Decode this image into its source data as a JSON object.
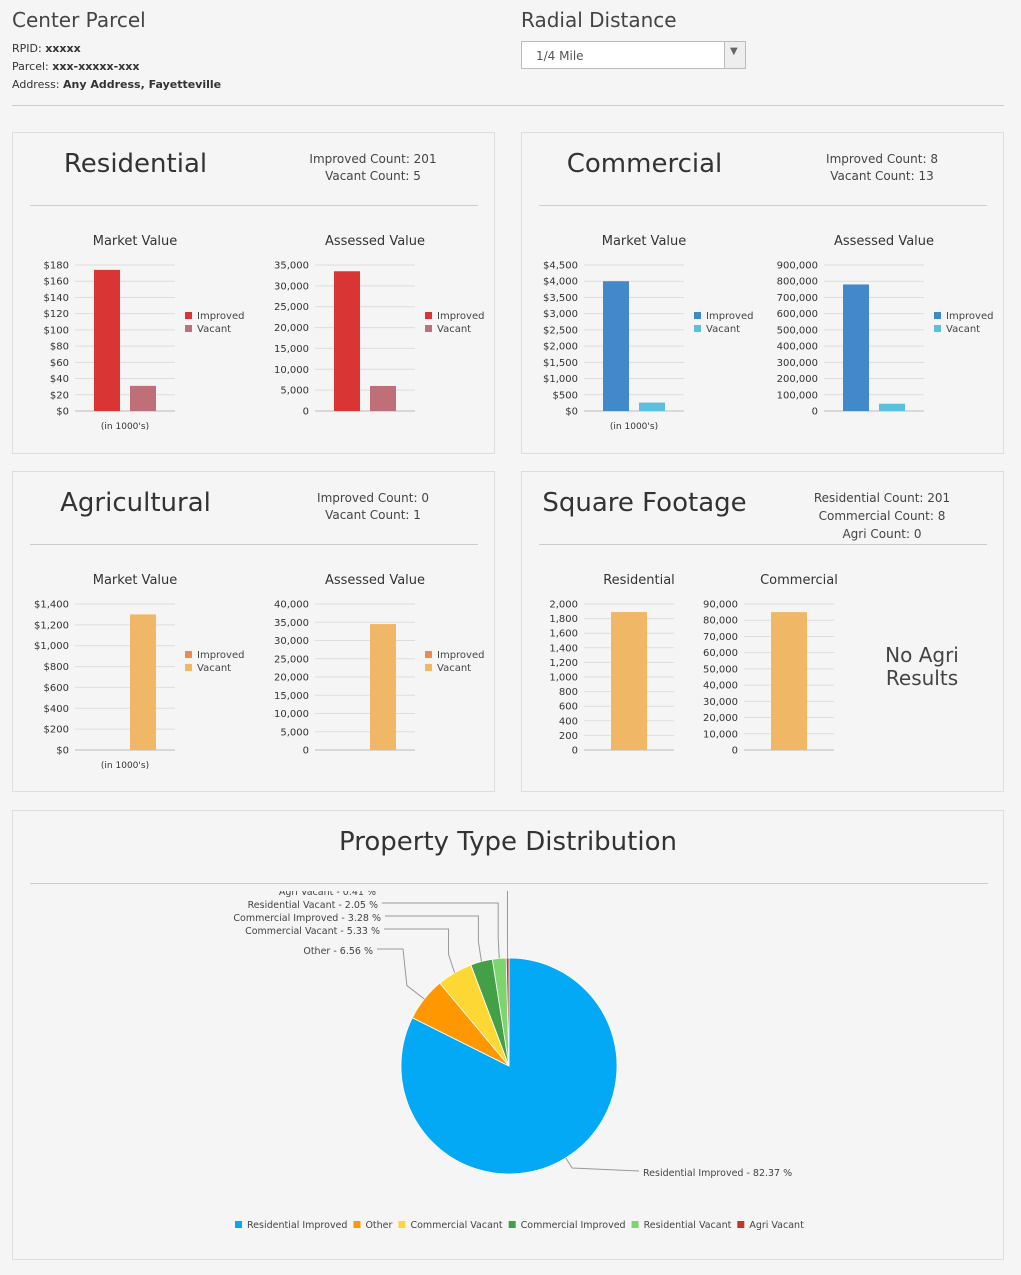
{
  "header": {
    "center_title": "Center Parcel",
    "rpid_label": "RPID: ",
    "rpid_value": "xxxxx",
    "parcel_label": "Parcel: ",
    "parcel_value": "xxx-xxxxx-xxx",
    "address_label": "Address: ",
    "address_value": "Any Address, Fayetteville",
    "radial_title": "Radial Distance",
    "radial_selected": "1/4 Mile"
  },
  "panels": {
    "residential": {
      "title": "Residential",
      "counts": [
        "Improved Count: 201",
        "Vacant Count: 5"
      ]
    },
    "commercial": {
      "title": "Commercial",
      "counts": [
        "Improved Count: 8",
        "Vacant Count: 13"
      ]
    },
    "agricultural": {
      "title": "Agricultural",
      "counts": [
        "Improved Count: 0",
        "Vacant Count: 1"
      ]
    },
    "sqft": {
      "title": "Square Footage",
      "counts": [
        "Residential Count: 201",
        "Commercial Count: 8",
        "Agri Count: 0"
      ],
      "no_agri": [
        "No Agri",
        "Results"
      ]
    },
    "pie": {
      "title": "Property Type Distribution"
    }
  },
  "colors": {
    "red": "#d93535",
    "rose": "#bf6f77",
    "blue": "#4488cc",
    "cyan": "#5bc0de",
    "orange": "#ef8a4d",
    "sand": "#f0b866"
  },
  "chart_data": [
    {
      "id": "res-market",
      "type": "bar",
      "title": "Market Value",
      "xlabel": "(in 1000's)",
      "ylim": [
        0,
        180
      ],
      "ticks": [
        0,
        20,
        40,
        60,
        80,
        100,
        120,
        140,
        160,
        180
      ],
      "tick_prefix": "$",
      "series": [
        {
          "name": "Improved",
          "value": 174,
          "color": "#d93535"
        },
        {
          "name": "Vacant",
          "value": 31,
          "color": "#bf6f77"
        }
      ]
    },
    {
      "id": "res-assessed",
      "type": "bar",
      "title": "Assessed Value",
      "xlabel": "",
      "ylim": [
        0,
        35000
      ],
      "ticks": [
        0,
        5000,
        10000,
        15000,
        20000,
        25000,
        30000,
        35000
      ],
      "tick_prefix": "",
      "series": [
        {
          "name": "Improved",
          "value": 33500,
          "color": "#d93535"
        },
        {
          "name": "Vacant",
          "value": 6000,
          "color": "#bf6f77"
        }
      ]
    },
    {
      "id": "com-market",
      "type": "bar",
      "title": "Market Value",
      "xlabel": "(in 1000's)",
      "ylim": [
        0,
        4500
      ],
      "ticks": [
        0,
        500,
        1000,
        1500,
        2000,
        2500,
        3000,
        3500,
        4000,
        4500
      ],
      "tick_prefix": "$",
      "series": [
        {
          "name": "Improved",
          "value": 4000,
          "color": "#4488cc"
        },
        {
          "name": "Vacant",
          "value": 260,
          "color": "#5bc0de"
        }
      ]
    },
    {
      "id": "com-assessed",
      "type": "bar",
      "title": "Assessed Value",
      "xlabel": "",
      "ylim": [
        0,
        900000
      ],
      "ticks": [
        0,
        100000,
        200000,
        300000,
        400000,
        500000,
        600000,
        700000,
        800000,
        900000
      ],
      "tick_prefix": "",
      "series": [
        {
          "name": "Improved",
          "value": 780000,
          "color": "#4488cc"
        },
        {
          "name": "Vacant",
          "value": 45000,
          "color": "#5bc0de"
        }
      ]
    },
    {
      "id": "agr-market",
      "type": "bar",
      "title": "Market Value",
      "xlabel": "(in 1000's)",
      "ylim": [
        0,
        1400
      ],
      "ticks": [
        0,
        200,
        400,
        600,
        800,
        1000,
        1200,
        1400
      ],
      "tick_prefix": "$",
      "series": [
        {
          "name": "Improved",
          "value": 0,
          "color": "#ef8a4d"
        },
        {
          "name": "Vacant",
          "value": 1300,
          "color": "#f0b866"
        }
      ]
    },
    {
      "id": "agr-assessed",
      "type": "bar",
      "title": "Assessed Value",
      "xlabel": "",
      "ylim": [
        0,
        40000
      ],
      "ticks": [
        0,
        5000,
        10000,
        15000,
        20000,
        25000,
        30000,
        35000,
        40000
      ],
      "tick_prefix": "",
      "series": [
        {
          "name": "Improved",
          "value": 0,
          "color": "#ef8a4d"
        },
        {
          "name": "Vacant",
          "value": 34500,
          "color": "#f0b866"
        }
      ]
    },
    {
      "id": "sq-res",
      "type": "bar",
      "title": "Residential",
      "xlabel": "",
      "ylim": [
        0,
        2000
      ],
      "ticks": [
        0,
        200,
        400,
        600,
        800,
        1000,
        1200,
        1400,
        1600,
        1800,
        2000
      ],
      "tick_prefix": "",
      "series": [
        {
          "name": "",
          "value": 1890,
          "color": "#f0b866"
        }
      ]
    },
    {
      "id": "sq-com",
      "type": "bar",
      "title": "Commercial",
      "xlabel": "",
      "ylim": [
        0,
        90000
      ],
      "ticks": [
        0,
        10000,
        20000,
        30000,
        40000,
        50000,
        60000,
        70000,
        80000,
        90000
      ],
      "tick_prefix": "",
      "series": [
        {
          "name": "",
          "value": 85000,
          "color": "#f0b866"
        }
      ]
    },
    {
      "id": "pie",
      "type": "pie",
      "title": "",
      "slices": [
        {
          "name": "Residential Improved",
          "label": "Residential Improved - 82.37 %",
          "value": 82.37,
          "color": "#03a9f4"
        },
        {
          "name": "Other",
          "label": "Other - 6.56 %",
          "value": 6.56,
          "color": "#ff9800"
        },
        {
          "name": "Commercial Vacant",
          "label": "Commercial Vacant - 5.33 %",
          "value": 5.33,
          "color": "#fdd835"
        },
        {
          "name": "Commercial Improved",
          "label": "Commercial Improved - 3.28 %",
          "value": 3.28,
          "color": "#43a047"
        },
        {
          "name": "Residential Vacant",
          "label": "Residential Vacant - 2.05 %",
          "value": 2.05,
          "color": "#7ed56f"
        },
        {
          "name": "Agri Vacant",
          "label": "Agri Vacant - 0.41 %",
          "value": 0.41,
          "color": "#c0392b"
        }
      ]
    }
  ]
}
